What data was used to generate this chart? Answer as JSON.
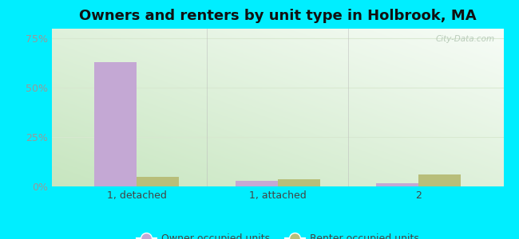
{
  "title": "Owners and renters by unit type in Holbrook, MA",
  "categories": [
    "1, detached",
    "1, attached",
    "2"
  ],
  "owner_values": [
    63,
    3,
    1.5
  ],
  "renter_values": [
    5,
    3.5,
    6
  ],
  "owner_color": "#c4a8d4",
  "renter_color": "#b8be7a",
  "background_outer": "#00eeff",
  "yticks": [
    0,
    25,
    50,
    75
  ],
  "ylim": [
    0,
    80
  ],
  "bar_width": 0.3,
  "legend_owner": "Owner occupied units",
  "legend_renter": "Renter occupied units",
  "title_fontsize": 13,
  "watermark": "City-Data.com",
  "gridline_color": "#dde8dd",
  "tick_color": "#999999",
  "label_color": "#444444"
}
